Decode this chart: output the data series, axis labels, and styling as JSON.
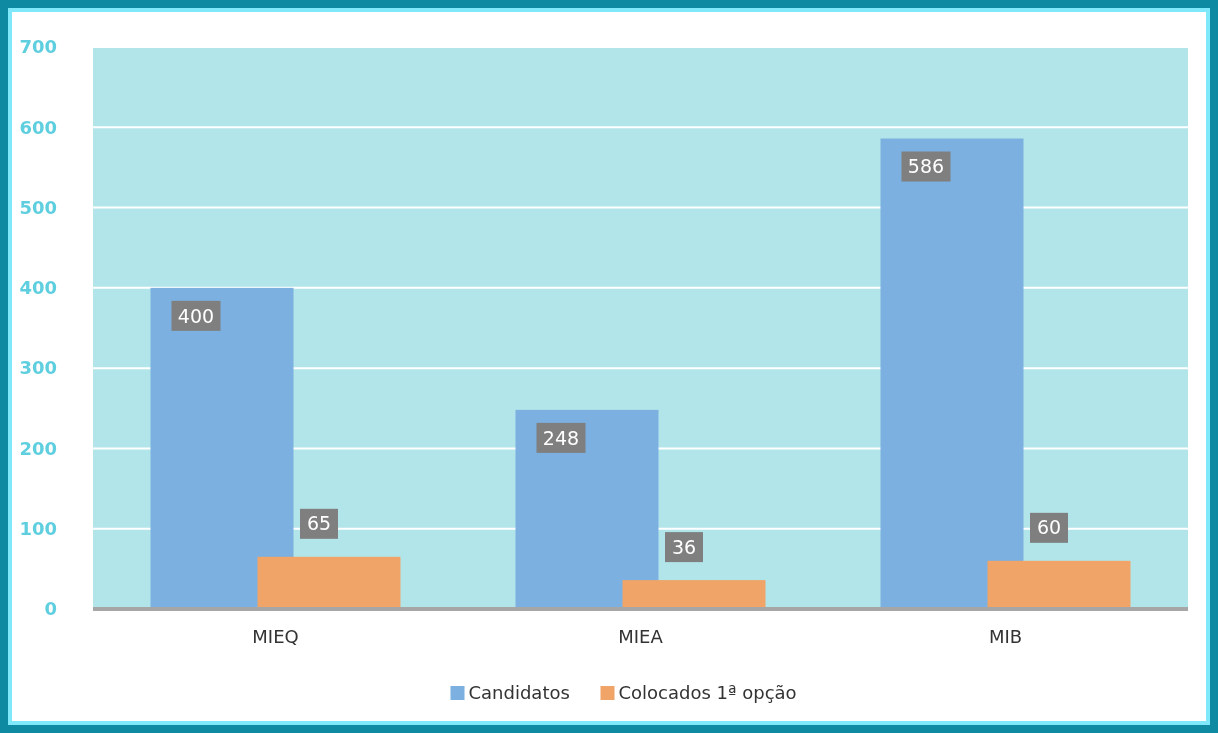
{
  "chart_data": {
    "type": "bar",
    "categories": [
      "MIEQ",
      "MIEA",
      "MIB"
    ],
    "series": [
      {
        "name": "Candidatos",
        "color": "#7cb0e0",
        "values": [
          400,
          248,
          586
        ]
      },
      {
        "name": "Colocados 1ª opção",
        "color": "#f0a468",
        "values": [
          65,
          36,
          60
        ]
      }
    ],
    "ylim": [
      0,
      700
    ],
    "yticks": [
      0,
      100,
      200,
      300,
      400,
      500,
      600,
      700
    ],
    "grid": "y",
    "legend": "bottom",
    "data_labels": true
  }
}
